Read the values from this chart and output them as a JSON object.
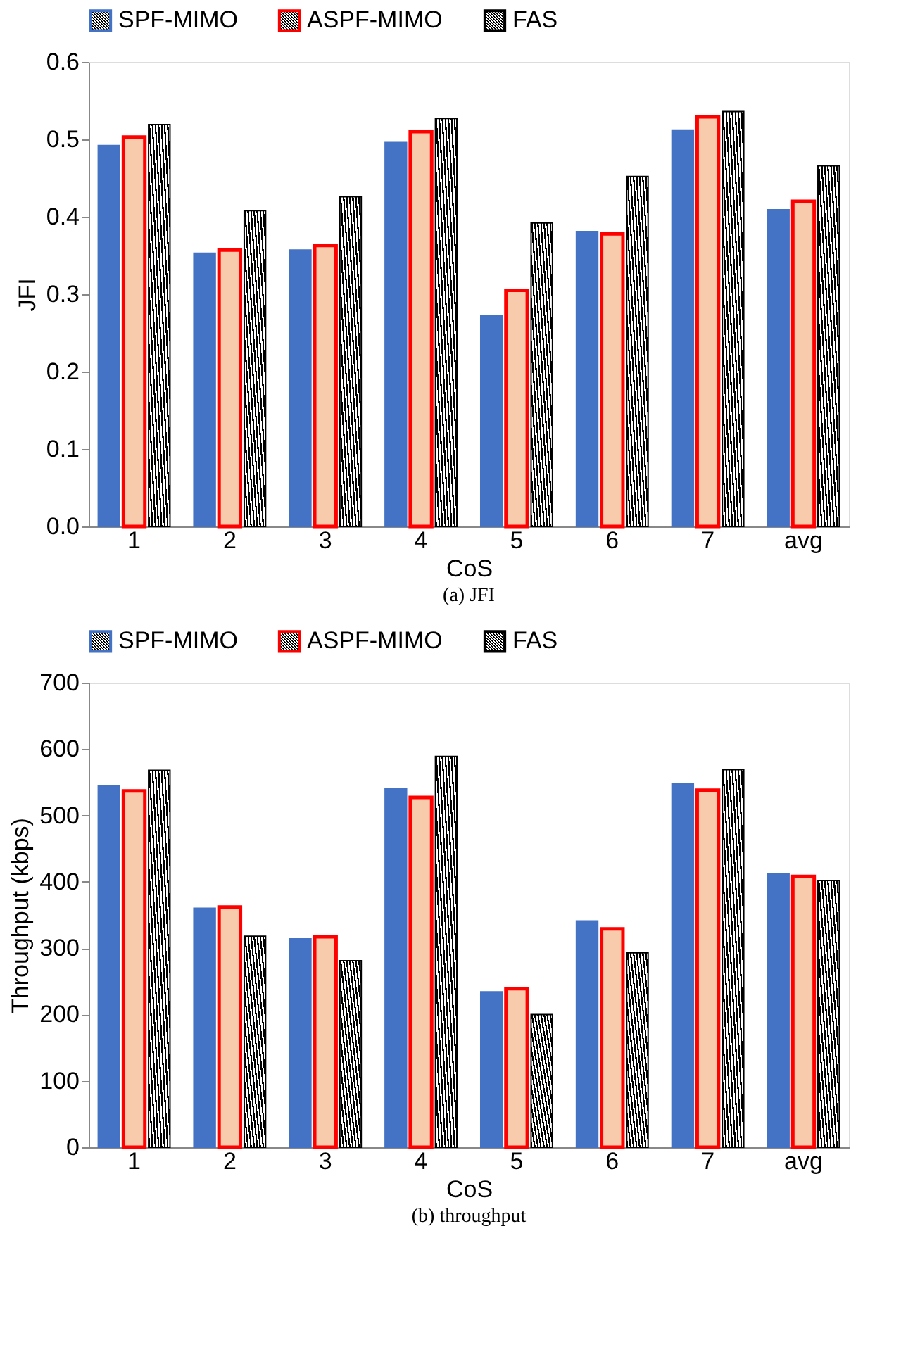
{
  "chart_data": [
    {
      "type": "bar",
      "title": "(a) JFI",
      "xlabel": "CoS",
      "ylabel": "JFI",
      "categories": [
        "1",
        "2",
        "3",
        "4",
        "5",
        "6",
        "7",
        "avg"
      ],
      "series": [
        {
          "name": "SPF-MIMO",
          "color": "#4472c4",
          "values": [
            0.492,
            0.353,
            0.357,
            0.496,
            0.272,
            0.381,
            0.512,
            0.409
          ]
        },
        {
          "name": "ASPF-MIMO",
          "color": "#f8cbad",
          "values": [
            0.503,
            0.357,
            0.363,
            0.51,
            0.305,
            0.378,
            0.529,
            0.42
          ]
        },
        {
          "name": "FAS",
          "color": "#000000",
          "values": [
            0.519,
            0.408,
            0.426,
            0.527,
            0.392,
            0.452,
            0.536,
            0.466
          ]
        }
      ],
      "ylim": [
        0,
        0.6
      ],
      "yticks": [
        {
          "value": 0,
          "label": "0.0"
        },
        0.1,
        0.2,
        0.3,
        0.4,
        0.5,
        0.6
      ],
      "grid": false,
      "legend": "top"
    },
    {
      "type": "bar",
      "title": "(b) throughput",
      "xlabel": "CoS",
      "ylabel": "Throughput (kbps)",
      "categories": [
        "1",
        "2",
        "3",
        "4",
        "5",
        "6",
        "7",
        "avg"
      ],
      "series": [
        {
          "name": "SPF-MIMO",
          "color": "#4472c4",
          "values": [
            545,
            360,
            314,
            541,
            234,
            341,
            548,
            412
          ]
        },
        {
          "name": "ASPF-MIMO",
          "color": "#f8cbad",
          "values": [
            537,
            362,
            317,
            527,
            239,
            329,
            538,
            408
          ]
        },
        {
          "name": "FAS",
          "color": "#000000",
          "values": [
            568,
            318,
            281,
            589,
            200,
            293,
            569,
            402
          ]
        }
      ],
      "ylim": [
        0,
        700
      ],
      "yticks": [
        0,
        100,
        200,
        300,
        400,
        500,
        600,
        700
      ],
      "grid": false,
      "legend": "top"
    }
  ]
}
